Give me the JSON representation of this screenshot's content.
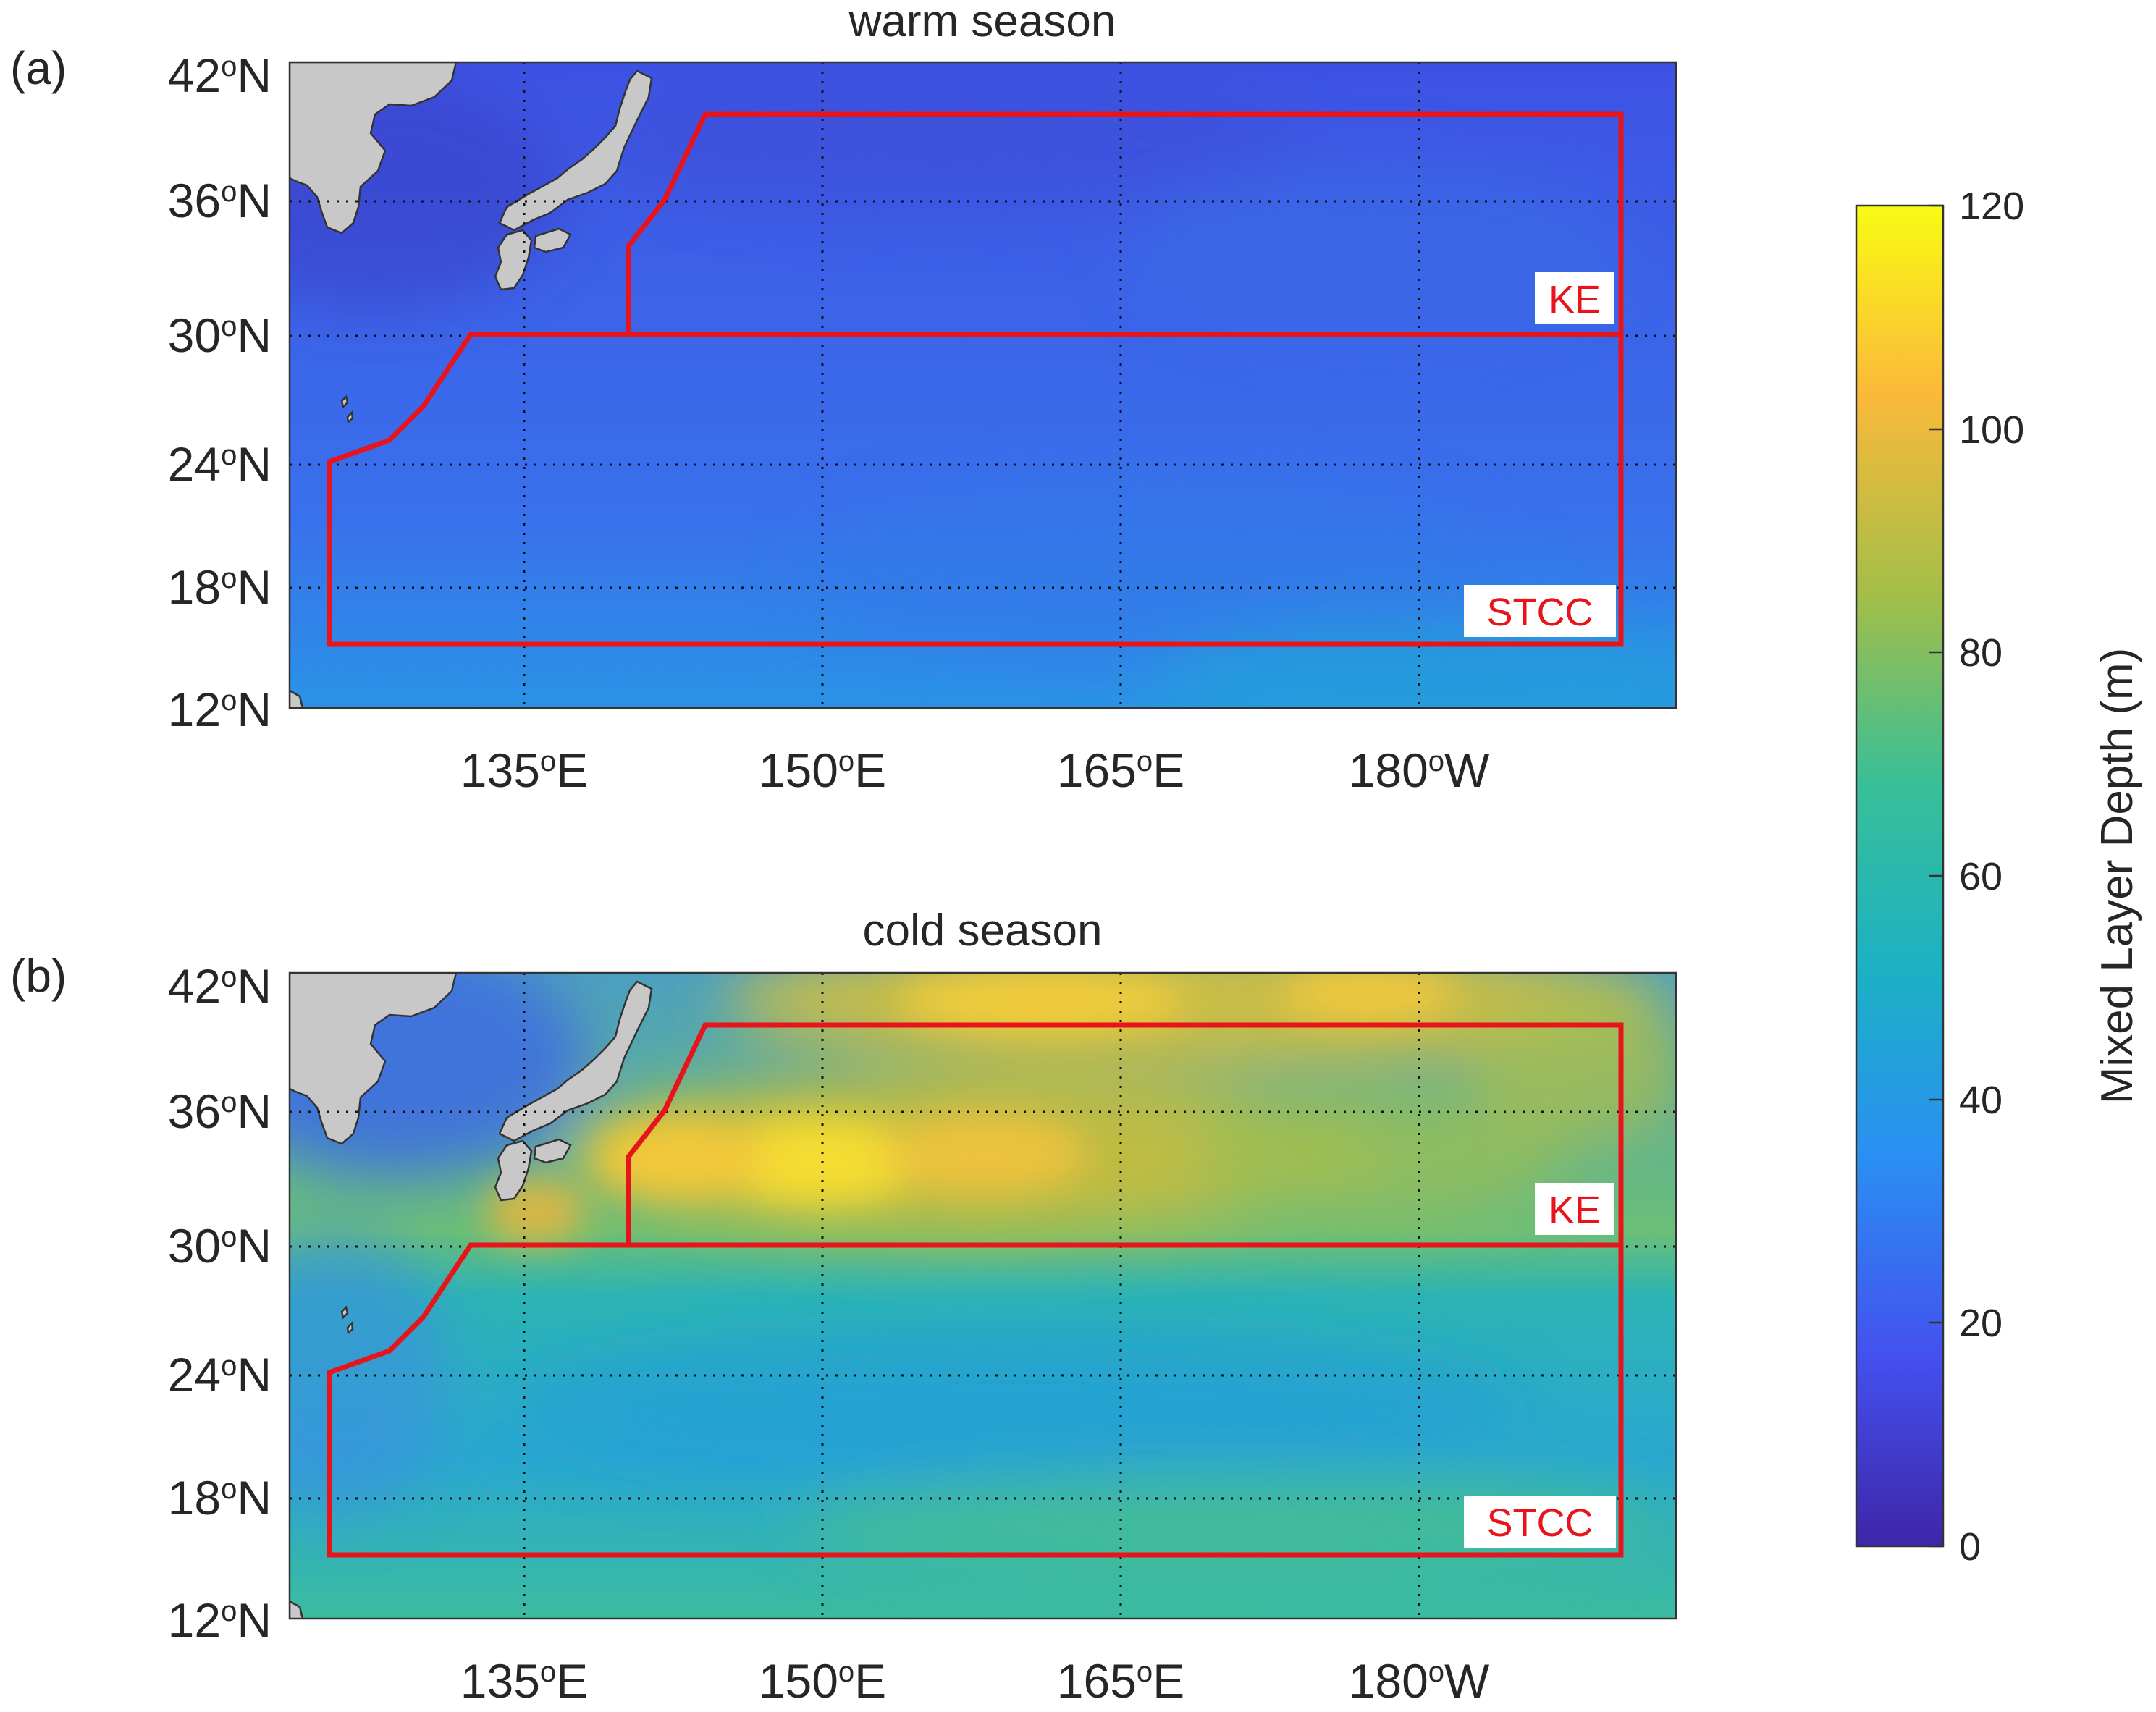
{
  "panels": [
    {
      "letter": "(a)",
      "title": "warm season",
      "lat_ticks": [
        {
          "deg": "42",
          "hemi": "N"
        },
        {
          "deg": "36",
          "hemi": "N"
        },
        {
          "deg": "30",
          "hemi": "N"
        },
        {
          "deg": "24",
          "hemi": "N"
        },
        {
          "deg": "18",
          "hemi": "N"
        },
        {
          "deg": "12",
          "hemi": "N"
        }
      ],
      "lon_ticks": [
        {
          "deg": "135",
          "hemi": "E"
        },
        {
          "deg": "150",
          "hemi": "E"
        },
        {
          "deg": "165",
          "hemi": "E"
        },
        {
          "deg": "180",
          "hemi": "W"
        }
      ],
      "region_labels": {
        "ke": "KE",
        "stcc": "STCC"
      }
    },
    {
      "letter": "(b)",
      "title": "cold season",
      "lat_ticks": [
        {
          "deg": "42",
          "hemi": "N"
        },
        {
          "deg": "36",
          "hemi": "N"
        },
        {
          "deg": "30",
          "hemi": "N"
        },
        {
          "deg": "24",
          "hemi": "N"
        },
        {
          "deg": "18",
          "hemi": "N"
        },
        {
          "deg": "12",
          "hemi": "N"
        }
      ],
      "lon_ticks": [
        {
          "deg": "135",
          "hemi": "E"
        },
        {
          "deg": "150",
          "hemi": "E"
        },
        {
          "deg": "165",
          "hemi": "E"
        },
        {
          "deg": "180",
          "hemi": "W"
        }
      ],
      "region_labels": {
        "ke": "KE",
        "stcc": "STCC"
      }
    }
  ],
  "colorbar": {
    "label": "Mixed Layer Depth (m)",
    "ticks": [
      "0",
      "20",
      "40",
      "60",
      "80",
      "100",
      "120"
    ],
    "range": [
      0,
      120
    ],
    "colormap": "parula",
    "colors": [
      "#3e26a8",
      "#4450ee",
      "#2a8ff3",
      "#1cb1c4",
      "#4fc385",
      "#c3bd35",
      "#fbb93a",
      "#f9fb14"
    ]
  },
  "style": {
    "region_outline_color": "#e8141c",
    "land_color": "#c8c8c8",
    "grid": "dotted"
  }
}
